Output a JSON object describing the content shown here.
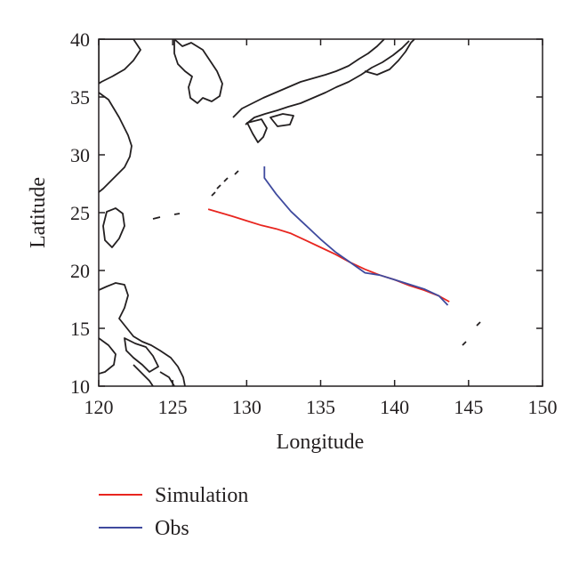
{
  "chart_data": {
    "type": "line",
    "xlabel": "Longitude",
    "ylabel": "Latitude",
    "xlim": [
      120,
      150
    ],
    "ylim": [
      10,
      40
    ],
    "xticks": [
      "120",
      "125",
      "130",
      "135",
      "140",
      "145",
      "150"
    ],
    "yticks": [
      "10",
      "15",
      "20",
      "25",
      "30",
      "35",
      "40"
    ],
    "grid": false,
    "legend_position": "bottom-left",
    "background_map": "coastlines",
    "series": [
      {
        "name": "Simulation",
        "color": "#e8251f",
        "points": [
          [
            127.4,
            25.3
          ],
          [
            128.2,
            25.0
          ],
          [
            129.0,
            24.7
          ],
          [
            130.0,
            24.3
          ],
          [
            131.0,
            23.9
          ],
          [
            132.0,
            23.6
          ],
          [
            133.0,
            23.2
          ],
          [
            134.0,
            22.6
          ],
          [
            135.0,
            22.0
          ],
          [
            136.0,
            21.4
          ],
          [
            137.0,
            20.7
          ],
          [
            138.0,
            20.1
          ],
          [
            139.0,
            19.6
          ],
          [
            140.0,
            19.2
          ],
          [
            141.0,
            18.7
          ],
          [
            142.0,
            18.3
          ],
          [
            143.0,
            17.8
          ],
          [
            143.7,
            17.3
          ]
        ]
      },
      {
        "name": "Obs",
        "color": "#3f4a9e",
        "points": [
          [
            131.2,
            29.0
          ],
          [
            131.2,
            28.0
          ],
          [
            132.0,
            26.6
          ],
          [
            133.0,
            25.1
          ],
          [
            134.0,
            23.9
          ],
          [
            135.0,
            22.7
          ],
          [
            136.0,
            21.6
          ],
          [
            137.0,
            20.7
          ],
          [
            138.0,
            19.8
          ],
          [
            139.0,
            19.6
          ],
          [
            140.0,
            19.2
          ],
          [
            141.0,
            18.8
          ],
          [
            142.0,
            18.4
          ],
          [
            143.0,
            17.8
          ],
          [
            143.6,
            17.0
          ]
        ]
      }
    ]
  }
}
